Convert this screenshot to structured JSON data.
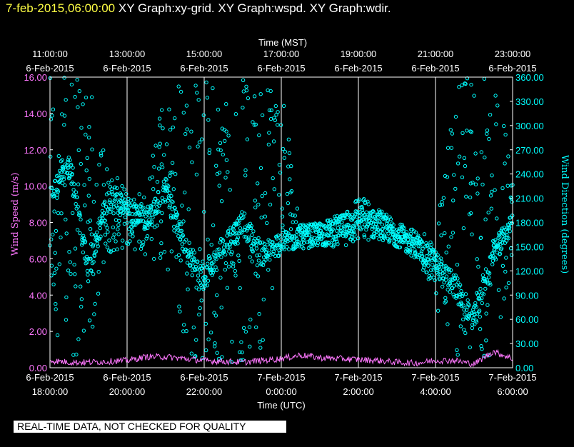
{
  "header": {
    "timestamp": "7-feb-2015,06:00:00",
    "graphs": "XY Graph:xy-grid.  XY Graph:wspd.  XY Graph:wdir."
  },
  "quality_notice": "REAL-TIME DATA, NOT CHECKED FOR QUALITY",
  "colors": {
    "wspd": "#ff77ff",
    "wdir": "#00ffff",
    "timestamp": "#ffff44",
    "grid": "#ffffff"
  },
  "chart_data": {
    "type": "scatter",
    "top_axis": {
      "title": "Time (MST)",
      "ticks": [
        {
          "time": "11:00:00",
          "date": "6-Feb-2015"
        },
        {
          "time": "13:00:00",
          "date": "6-Feb-2015"
        },
        {
          "time": "15:00:00",
          "date": "6-Feb-2015"
        },
        {
          "time": "17:00:00",
          "date": "6-Feb-2015"
        },
        {
          "time": "19:00:00",
          "date": "6-Feb-2015"
        },
        {
          "time": "21:00:00",
          "date": "6-Feb-2015"
        },
        {
          "time": "23:00:00",
          "date": "6-Feb-2015"
        }
      ]
    },
    "bottom_axis": {
      "title": "Time (UTC)",
      "range": [
        "2015-02-06T18:00:00",
        "2015-02-07T06:00:00"
      ],
      "ticks": [
        {
          "date": "6-Feb-2015",
          "time": "18:00:00"
        },
        {
          "date": "6-Feb-2015",
          "time": "20:00:00"
        },
        {
          "date": "6-Feb-2015",
          "time": "22:00:00"
        },
        {
          "date": "7-Feb-2015",
          "time": "0:00:00"
        },
        {
          "date": "7-Feb-2015",
          "time": "2:00:00"
        },
        {
          "date": "7-Feb-2015",
          "time": "4:00:00"
        },
        {
          "date": "7-Feb-2015",
          "time": "6:00:00"
        }
      ]
    },
    "left_axis": {
      "title": "Wind Speed (m/s)",
      "range": [
        0,
        16
      ],
      "ticks": [
        "0.00",
        "2.00",
        "4.00",
        "6.00",
        "8.00",
        "10.00",
        "12.00",
        "14.00",
        "16.00"
      ]
    },
    "right_axis": {
      "title": "Wind Direction (degrees)",
      "range": [
        0,
        360
      ],
      "ticks": [
        "0.00",
        "30.00",
        "60.00",
        "90.00",
        "120.00",
        "150.00",
        "180.00",
        "210.00",
        "240.00",
        "270.00",
        "300.00",
        "330.00",
        "360.00"
      ]
    },
    "grid": "vertical lines at bottom-axis ticks",
    "series": [
      {
        "key": "wspd",
        "axis": "left",
        "style": "line",
        "x_hours_utc": [
          18,
          18.5,
          19,
          19.5,
          20,
          20.5,
          21,
          21.5,
          22,
          22.5,
          23,
          23.5,
          24,
          24.5,
          25,
          25.5,
          26,
          26.5,
          27,
          27.5,
          28,
          28.5,
          29,
          29.5,
          30
        ],
        "values": [
          0.4,
          0.3,
          0.3,
          0.35,
          0.4,
          0.6,
          0.6,
          0.5,
          0.4,
          0.35,
          0.3,
          0.4,
          0.5,
          0.7,
          0.55,
          0.5,
          0.45,
          0.4,
          0.3,
          0.25,
          0.4,
          0.4,
          0.2,
          0.9,
          0.5
        ]
      },
      {
        "key": "wdir",
        "axis": "right",
        "style": "circle-markers",
        "envelope_x_hours_utc": [
          18,
          18.5,
          19,
          19.5,
          20,
          20.5,
          21,
          21.5,
          22,
          22.5,
          23,
          23.5,
          24,
          24.5,
          25,
          25.5,
          26,
          26.5,
          27,
          27.5,
          28,
          28.5,
          29,
          29.5,
          30
        ],
        "envelope_low": [
          60,
          5,
          5,
          140,
          150,
          140,
          120,
          20,
          5,
          5,
          5,
          20,
          140,
          150,
          150,
          150,
          155,
          160,
          150,
          140,
          80,
          5,
          5,
          5,
          130
        ],
        "envelope_high": [
          360,
          360,
          360,
          250,
          220,
          220,
          360,
          360,
          360,
          360,
          360,
          360,
          360,
          175,
          180,
          190,
          215,
          200,
          180,
          170,
          160,
          360,
          360,
          360,
          270
        ],
        "center": [
          210,
          250,
          120,
          210,
          195,
          185,
          220,
          150,
          110,
          150,
          180,
          140,
          155,
          162,
          165,
          172,
          185,
          178,
          163,
          150,
          130,
          100,
          60,
          140,
          180
        ]
      }
    ]
  }
}
